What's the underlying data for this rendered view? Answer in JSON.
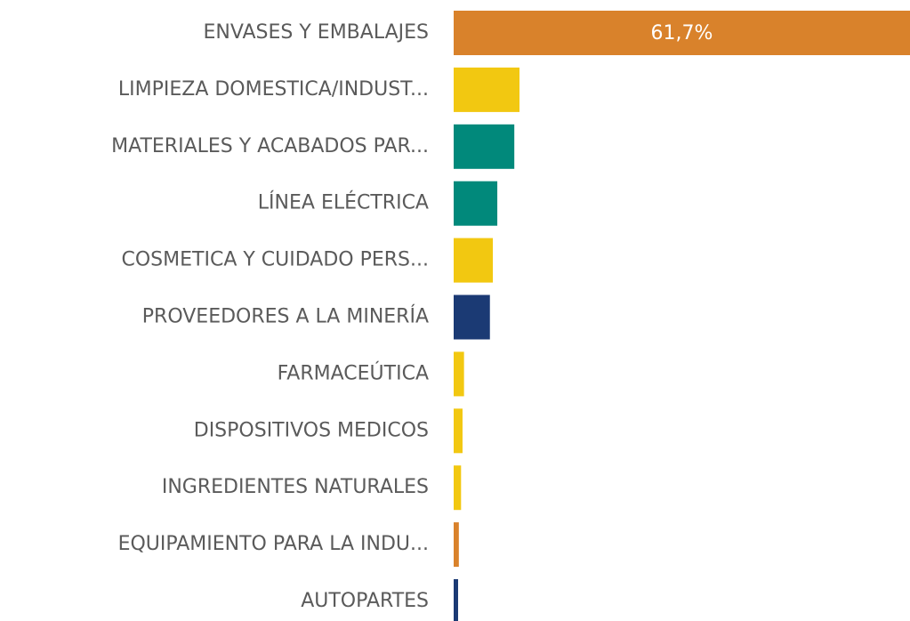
{
  "chart_data": {
    "type": "bar",
    "orientation": "horizontal",
    "categories": [
      "ENVASES Y EMBALAJES",
      "LIMPIEZA DOMESTICA/INDUST...",
      "MATERIALES Y ACABADOS PAR...",
      "LÍNEA ELÉCTRICA",
      "COSMETICA Y CUIDADO PERS...",
      "PROVEEDORES A LA MINERÍA",
      "FARMACEÚTICA",
      "DISPOSITIVOS MEDICOS",
      "INGREDIENTES NATURALES",
      "EQUIPAMIENTO PARA LA INDU...",
      "AUTOPARTES"
    ],
    "values": [
      61.7,
      8.9,
      8.2,
      5.9,
      5.3,
      4.9,
      1.4,
      1.2,
      1.0,
      0.7,
      0.6
    ],
    "value_labels": [
      "61,7%",
      null,
      null,
      null,
      null,
      null,
      null,
      null,
      null,
      null,
      null
    ],
    "colors": [
      "#d9822b",
      "#f2c811",
      "#01897b",
      "#01897b",
      "#f2c811",
      "#1b3a74",
      "#f2c811",
      "#f2c811",
      "#f2c811",
      "#d9822b",
      "#1b3a74"
    ]
  }
}
